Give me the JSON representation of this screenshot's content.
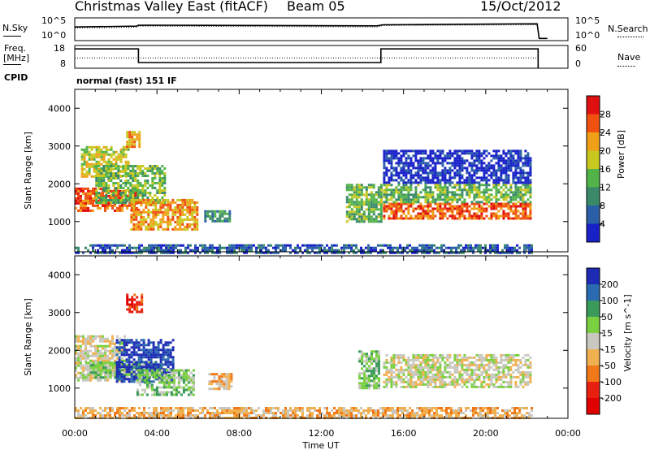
{
  "header": {
    "station": "Christmas Valley East (fitACF)",
    "beam": "Beam 05",
    "date": "15/Oct/2012"
  },
  "nsky_panel": {
    "left_label": "N.Sky",
    "right_label": "N.Search",
    "left_ticks": [
      "10^5",
      "10^0"
    ],
    "right_ticks": [
      "10^5",
      "10^0"
    ]
  },
  "freq_panel": {
    "left_label_1": "Freq.",
    "left_label_2": "[MHz]",
    "right_label": "Nave",
    "left_ticks": [
      "18",
      "8"
    ],
    "right_ticks": [
      "60",
      "0"
    ]
  },
  "cpid": {
    "label": "CPID",
    "value": "normal (fast) 151 IF"
  },
  "chart_data": [
    {
      "type": "line",
      "panel": "N.Sky / N.Search",
      "ylabel": "N.Sky",
      "ylabel_right": "N.Search",
      "yscale": "log",
      "ylim": [
        1,
        100000
      ],
      "x_unit": "hours UT",
      "series": [
        {
          "name": "N.Sky",
          "x": [
            0,
            3,
            3.1,
            14.7,
            15,
            22.5,
            22.6,
            23
          ],
          "y": [
            1000,
            1500,
            2500,
            1800,
            3000,
            5000,
            3,
            3
          ]
        },
        {
          "name": "N.Search",
          "x": [
            0,
            3,
            3.1,
            14.7,
            15,
            22.5
          ],
          "y": [
            600,
            900,
            1500,
            1000,
            2000,
            3000
          ]
        }
      ]
    },
    {
      "type": "line",
      "panel": "Frequency / Nave",
      "ylabel": "Freq. [MHz]",
      "ylabel_right": "Nave",
      "ylim": [
        8,
        18
      ],
      "ylim_right": [
        0,
        60
      ],
      "x_unit": "hours UT",
      "series": [
        {
          "name": "Freq.",
          "x": [
            0,
            3.1,
            3.1,
            14.9,
            14.9,
            22.55,
            22.55
          ],
          "y": [
            16.5,
            16.5,
            10.5,
            10.5,
            16.5,
            16.5,
            8
          ]
        },
        {
          "name": "Nave",
          "x": [
            0,
            22.5
          ],
          "y": [
            27,
            27
          ]
        }
      ]
    },
    {
      "type": "heatmap",
      "panel": "Power",
      "xlabel": "",
      "ylabel": "Slant Range [km]",
      "colorbar_label": "Power [dB]",
      "colorbar_ticks": [
        4,
        8,
        12,
        16,
        20,
        24,
        28
      ],
      "xlim_hours": [
        0,
        24
      ],
      "ylim_km": [
        200,
        4500
      ],
      "yticks": [
        1000,
        2000,
        3000,
        4000
      ],
      "colors": [
        "#1820c8",
        "#2a5fa8",
        "#3a8a6a",
        "#52b448",
        "#c8c820",
        "#f0a018",
        "#f05010",
        "#e01010"
      ],
      "regions": [
        {
          "x0": 0.0,
          "x1": 3.0,
          "r0": 1300,
          "r1": 1900,
          "level": 6
        },
        {
          "x0": 0.3,
          "x1": 2.6,
          "r0": 2200,
          "r1": 3000,
          "level": 4
        },
        {
          "x0": 2.5,
          "x1": 3.2,
          "r0": 3000,
          "r1": 3400,
          "level": 5
        },
        {
          "x0": 1.0,
          "x1": 4.4,
          "r0": 1500,
          "r1": 2500,
          "level": 3
        },
        {
          "x0": 2.7,
          "x1": 6.0,
          "r0": 800,
          "r1": 1600,
          "level": 5
        },
        {
          "x0": 6.3,
          "x1": 7.6,
          "r0": 1000,
          "r1": 1300,
          "level": 2
        },
        {
          "x0": 13.2,
          "x1": 14.9,
          "r0": 1000,
          "r1": 2000,
          "level": 3
        },
        {
          "x0": 15.0,
          "x1": 22.2,
          "r0": 1050,
          "r1": 1500,
          "level": 6
        },
        {
          "x0": 15.0,
          "x1": 22.2,
          "r0": 1500,
          "r1": 2000,
          "level": 3
        },
        {
          "x0": 15.0,
          "x1": 22.2,
          "r0": 2000,
          "r1": 2900,
          "level": 0
        },
        {
          "x0": 0.0,
          "x1": 22.2,
          "r0": 200,
          "r1": 400,
          "level": 1
        }
      ]
    },
    {
      "type": "heatmap",
      "panel": "Velocity",
      "xlabel": "Time UT",
      "ylabel": "Slant Range [km]",
      "colorbar_label": "Velocity [m s^-1]",
      "colorbar_ticks": [
        200,
        100,
        50,
        15,
        -15,
        -50,
        -100,
        -200
      ],
      "xtick_labels": [
        "00:00",
        "04:00",
        "08:00",
        "12:00",
        "16:00",
        "20:00",
        "00:00"
      ],
      "xlim_hours": [
        0,
        24
      ],
      "ylim_km": [
        200,
        4500
      ],
      "yticks": [
        1000,
        2000,
        3000,
        4000
      ],
      "colors": [
        "#1c2ab4",
        "#2a6ab0",
        "#3a9a5a",
        "#7ad040",
        "#c8c8c0",
        "#f0b050",
        "#f07818",
        "#e82010",
        "#e00000"
      ],
      "regions": [
        {
          "x0": 0.0,
          "x1": 2.4,
          "r0": 1200,
          "r1": 2400,
          "level": 4
        },
        {
          "x0": 0.5,
          "x1": 4.2,
          "r0": 1300,
          "r1": 1700,
          "level": 3
        },
        {
          "x0": 2.0,
          "x1": 4.8,
          "r0": 1200,
          "r1": 2300,
          "level": 0
        },
        {
          "x0": 3.0,
          "x1": 5.8,
          "r0": 800,
          "r1": 1500,
          "level": 3
        },
        {
          "x0": 2.5,
          "x1": 3.3,
          "r0": 3000,
          "r1": 3500,
          "level": 7
        },
        {
          "x0": 6.5,
          "x1": 7.6,
          "r0": 1000,
          "r1": 1400,
          "level": 5
        },
        {
          "x0": 13.8,
          "x1": 14.8,
          "r0": 1000,
          "r1": 2000,
          "level": 3
        },
        {
          "x0": 15.0,
          "x1": 22.2,
          "r0": 1000,
          "r1": 1900,
          "level": 4
        },
        {
          "x0": 0.0,
          "x1": 22.2,
          "r0": 200,
          "r1": 500,
          "level": 5
        }
      ]
    }
  ]
}
